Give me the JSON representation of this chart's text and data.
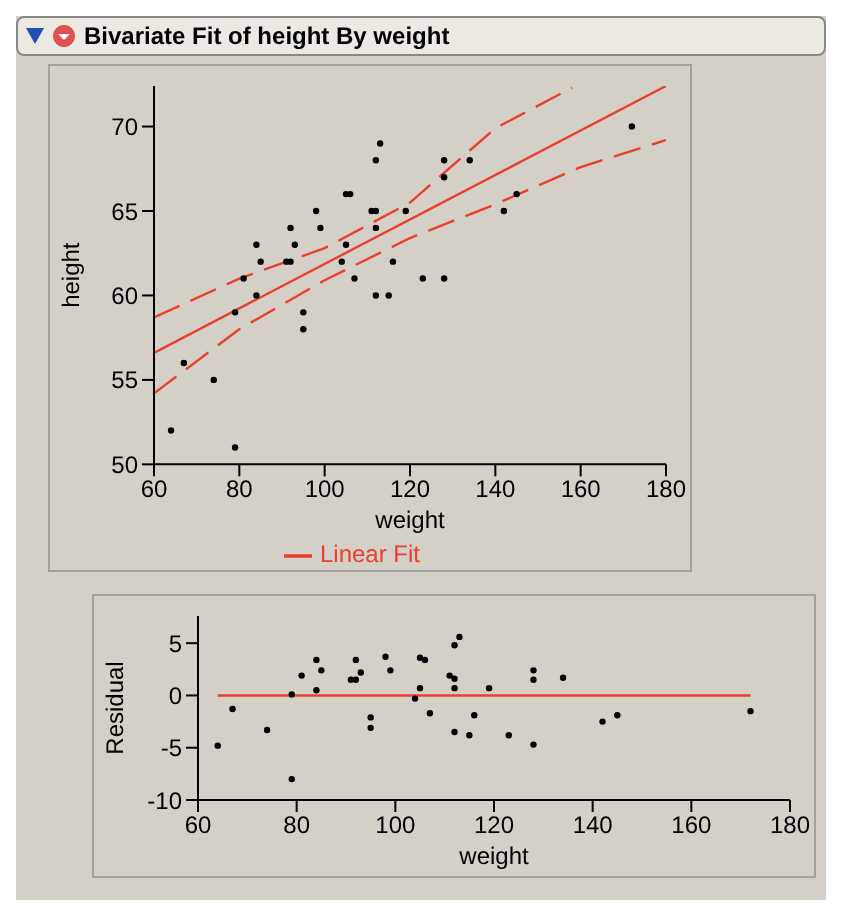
{
  "chart_data": [
    {
      "type": "scatter",
      "title": "Bivariate Fit of height By weight",
      "xlabel": "weight",
      "ylabel": "height",
      "xlim": [
        60,
        180
      ],
      "xticks": [
        60,
        80,
        100,
        120,
        140,
        160,
        180
      ],
      "ylim": [
        50,
        72.4
      ],
      "yticks": [
        50,
        55,
        60,
        65,
        70
      ],
      "legend": "bottom",
      "series": [
        {
          "color": "#000000",
          "x": [
            64,
            67,
            74,
            79,
            79,
            81,
            84,
            84,
            85,
            91,
            92,
            92,
            93,
            95,
            95,
            98,
            99,
            104,
            105,
            105,
            106,
            107,
            111,
            112,
            112,
            113,
            112,
            112,
            115,
            116,
            119,
            123,
            128,
            128,
            128,
            134,
            142,
            145,
            172
          ],
          "values": [
            52,
            56,
            55,
            51,
            59,
            61,
            63,
            60,
            62,
            62,
            62,
            64,
            63,
            59,
            58,
            65,
            64,
            62,
            63,
            66,
            66,
            61,
            65,
            65,
            68,
            69,
            64,
            60,
            60,
            62,
            65,
            61,
            68,
            67,
            61,
            68,
            65,
            66,
            70
          ]
        },
        {
          "type": "line",
          "name": "Linear Fit",
          "color": "#e8402a",
          "line_style": "solid",
          "x": [
            60,
            180
          ],
          "values": [
            56.6,
            72.4
          ]
        },
        {
          "type": "line",
          "color": "#e8402a",
          "line_style": "dashed",
          "x": [
            60,
            80,
            100,
            120,
            140,
            158
          ],
          "values": [
            58.7,
            61,
            62.8,
            65.5,
            69.9,
            72.3
          ]
        },
        {
          "type": "line",
          "color": "#e8402a",
          "line_style": "dashed",
          "x": [
            60,
            80,
            100,
            120,
            140,
            160,
            180
          ],
          "values": [
            54.2,
            58,
            60.9,
            63.4,
            65.4,
            67.6,
            69.2
          ]
        }
      ]
    },
    {
      "type": "scatter",
      "xlabel": "weight",
      "ylabel": "Residual",
      "xlim": [
        60,
        180
      ],
      "xticks": [
        60,
        80,
        100,
        120,
        140,
        160,
        180
      ],
      "ylim": [
        -10,
        7.6
      ],
      "yticks": [
        -10,
        -5,
        0,
        5
      ],
      "series": [
        {
          "color": "#000000",
          "x": [
            64,
            67,
            74,
            79,
            79,
            81,
            84,
            84,
            85,
            91,
            92,
            92,
            93,
            95,
            95,
            98,
            99,
            104,
            105,
            105,
            106,
            107,
            111,
            112,
            112,
            113,
            112,
            112,
            115,
            116,
            119,
            123,
            128,
            128,
            128,
            134,
            142,
            145,
            172
          ],
          "values": [
            -4.8,
            -1.3,
            -3.3,
            0.1,
            -8,
            1.9,
            3.4,
            0.5,
            2.4,
            1.5,
            1.5,
            3.4,
            2.2,
            -2.1,
            -3.1,
            3.7,
            2.4,
            -0.3,
            0.7,
            3.6,
            3.4,
            -1.7,
            1.9,
            1.6,
            4.8,
            5.6,
            0.7,
            -3.5,
            -3.8,
            -1.9,
            0.7,
            -3.8,
            -4.7,
            1.5,
            2.4,
            1.7,
            -2.5,
            -1.9,
            -1.5
          ]
        },
        {
          "type": "line",
          "color": "#e8402a",
          "line_style": "solid",
          "x": [
            64,
            172
          ],
          "values": [
            0,
            0
          ]
        }
      ]
    }
  ]
}
